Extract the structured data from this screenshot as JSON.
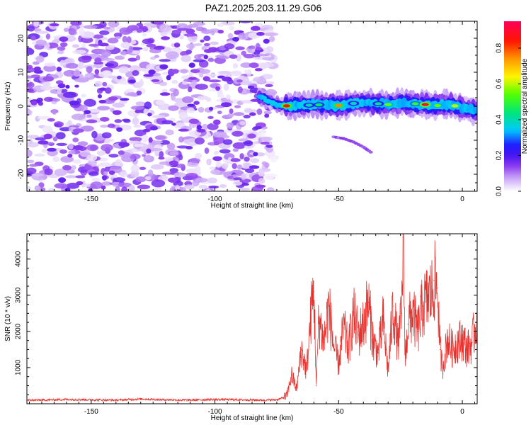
{
  "title": "PAZ1.2025.203.11.29.G06",
  "chart_data": [
    {
      "type": "heatmap",
      "xlabel": "Height of straight line (km)",
      "ylabel": "Frequency (Hz)",
      "xlim": [
        -176,
        6
      ],
      "ylim": [
        -25,
        25
      ],
      "x_ticks": [
        -150,
        -100,
        -50,
        0
      ],
      "y_ticks": [
        -20,
        -10,
        0,
        10,
        20
      ],
      "colorbar": {
        "label": "Normalized spectral amplitude",
        "range": [
          0,
          0.95
        ],
        "ticks": [
          "0.0",
          "0.2",
          "0.4",
          "0.6",
          "0.8"
        ],
        "tick_values": [
          0.0,
          0.2,
          0.4,
          0.6,
          0.8
        ],
        "colormap": "rainbow (white/lavender, purple, blue, cyan, green, yellow, orange, red, magenta)"
      },
      "features": {
        "noise_region_x": [
          -176,
          -78
        ],
        "noise_amplitude_range": [
          0.02,
          0.12
        ],
        "signal_track": {
          "x": [
            -82,
            -75,
            -70,
            -65,
            -60,
            -55,
            -50,
            -45,
            -40,
            -35,
            -30,
            -25,
            -20,
            -15,
            -10,
            -5,
            0,
            6
          ],
          "frequency": [
            3,
            0.5,
            0,
            0.2,
            0.4,
            0.5,
            0.2,
            0.8,
            1.0,
            0.8,
            0.5,
            1.0,
            0.8,
            0.5,
            0.2,
            0.5,
            -0.5,
            -1.5
          ],
          "peak_amplitude": 0.9
        },
        "secondary_branch": {
          "x": [
            -52,
            -48,
            -44,
            -40,
            -37
          ],
          "frequency": [
            -9,
            -9.5,
            -10.5,
            -12,
            -13.5
          ],
          "amplitude": 0.1
        }
      }
    },
    {
      "type": "line",
      "xlabel": "Height of straight line (km)",
      "ylabel": "SNR (10 * v/v)",
      "xlim": [
        -176,
        6
      ],
      "ylim": [
        0,
        4700
      ],
      "x_ticks": [
        -150,
        -100,
        -50,
        0
      ],
      "y_ticks": [
        1000,
        2000,
        3000,
        4000
      ],
      "series": [
        {
          "color": "#e8322e",
          "x": [
            -176,
            -170,
            -160,
            -150,
            -140,
            -130,
            -120,
            -110,
            -100,
            -90,
            -80,
            -75,
            -71,
            -69,
            -67,
            -65,
            -63,
            -61,
            -60,
            -59,
            -58,
            -56,
            -54,
            -52,
            -50,
            -48,
            -46,
            -44,
            -42,
            -40,
            -38,
            -36,
            -34,
            -32,
            -30,
            -28,
            -26,
            -24.5,
            -24,
            -23,
            -22,
            -20,
            -18,
            -16,
            -14,
            -12,
            -11.5,
            -10,
            -9,
            -8,
            -6,
            -4,
            -2,
            0,
            2,
            4,
            6
          ],
          "y": [
            100,
            100,
            120,
            110,
            100,
            130,
            110,
            100,
            120,
            110,
            100,
            110,
            200,
            800,
            400,
            1500,
            900,
            2600,
            3100,
            500,
            2400,
            1700,
            2700,
            1600,
            1100,
            2100,
            1500,
            2500,
            1900,
            2200,
            2800,
            1700,
            1400,
            2300,
            900,
            2700,
            1600,
            2500,
            4600,
            1200,
            2200,
            2500,
            2000,
            2700,
            2900,
            3100,
            3400,
            3200,
            1500,
            1000,
            1800,
            1500,
            1700,
            1800,
            1500,
            1700,
            2400
          ]
        }
      ]
    }
  ]
}
